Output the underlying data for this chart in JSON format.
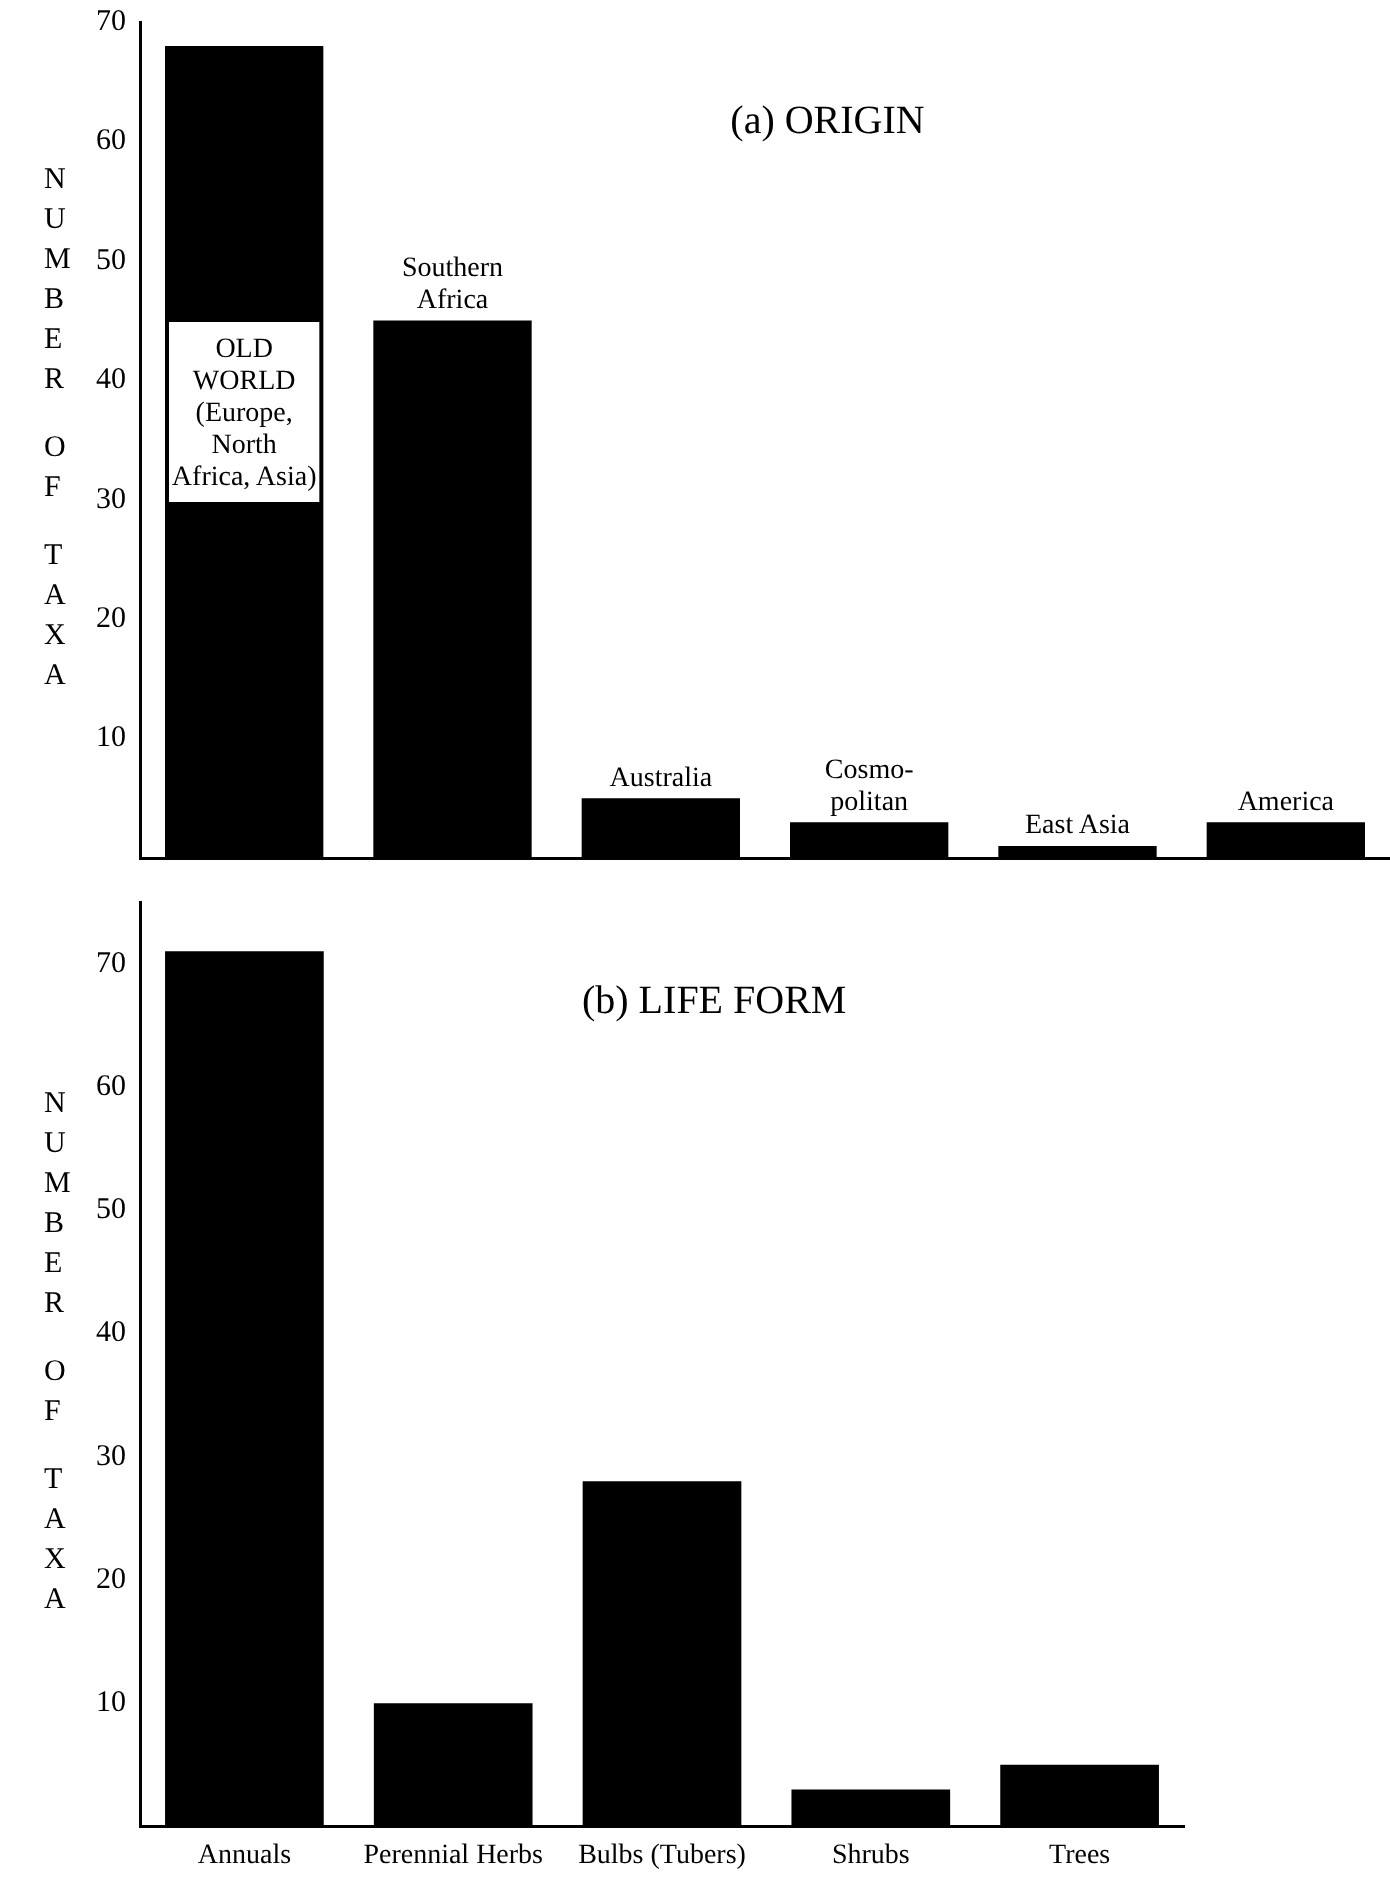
{
  "chart_data": [
    {
      "type": "bar",
      "title": "(a) ORIGIN",
      "ylabel": "NUMBER OF TAXA",
      "categories": [
        "OLD WORLD (Europe, North Africa, Asia)",
        "Southern Africa",
        "Australia",
        "Cosmo-politan",
        "East Asia",
        "America"
      ],
      "values": [
        68,
        45,
        5,
        3,
        1,
        3
      ],
      "color": "#000000",
      "ylim": [
        0,
        70
      ],
      "yticks": [
        10,
        20,
        30,
        40,
        50,
        60,
        70
      ]
    },
    {
      "type": "bar",
      "title": "(b) LIFE FORM",
      "ylabel": "NUMBER OF TAXA",
      "categories": [
        "Annuals",
        "Perennial Herbs",
        "Bulbs (Tubers)",
        "Shrubs",
        "Trees"
      ],
      "values": [
        71,
        10,
        28,
        3,
        5
      ],
      "color": "#000000",
      "ylim": [
        0,
        75
      ],
      "yticks": [
        10,
        20,
        30,
        40,
        50,
        60,
        70
      ]
    }
  ]
}
